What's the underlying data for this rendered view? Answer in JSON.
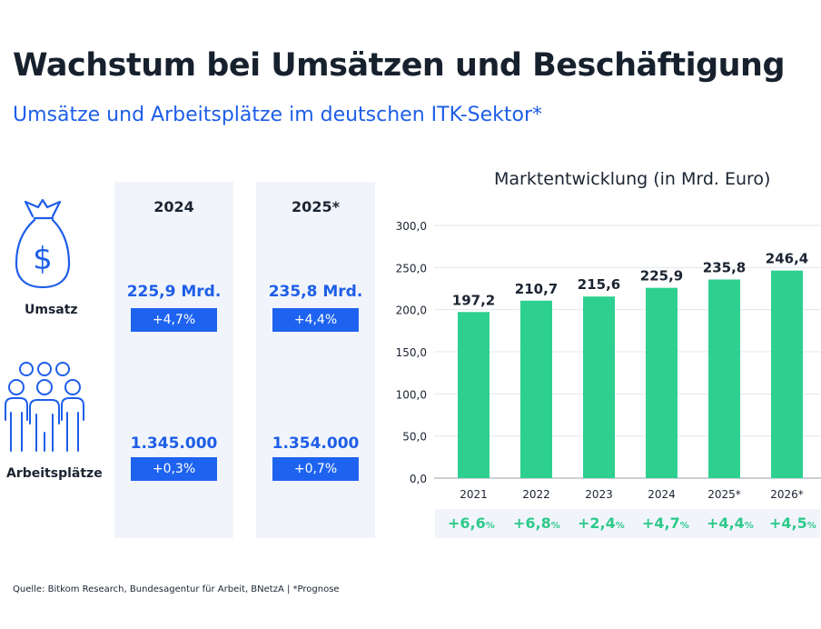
{
  "title": "Wachstum bei Umsätzen und Beschäftigung",
  "subtitle": "Umsätze und Arbeitsplätze im deutschen ITK-Sektor*",
  "table": {
    "columns": [
      "2024",
      "2025*"
    ],
    "rows": [
      {
        "label": "Umsatz",
        "icon": "money-bag-icon",
        "values": [
          "225,9 Mrd.",
          "235,8 Mrd."
        ],
        "changes": [
          "+4,7%",
          "+4,4%"
        ]
      },
      {
        "label": "Arbeitsplätze",
        "icon": "people-group-icon",
        "values": [
          "1.345.000",
          "1.354.000"
        ],
        "changes": [
          "+0,3%",
          "+0,7%"
        ]
      }
    ]
  },
  "colors": {
    "accent_blue": "#1e5ee8",
    "badge_blue": "#1e63f0",
    "bar_green": "#2ed08f",
    "growth_green": "#2fc98b",
    "panel_bg": "#f1f5fb"
  },
  "chart_data": {
    "type": "bar",
    "title": "Marktentwicklung (in Mrd. Euro)",
    "categories": [
      "2021",
      "2022",
      "2023",
      "2024",
      "2025*",
      "2026*"
    ],
    "values": [
      197.2,
      210.7,
      215.6,
      225.9,
      235.8,
      246.4
    ],
    "value_labels": [
      "197,2",
      "210,7",
      "215,6",
      "225,9",
      "235,8",
      "246,4"
    ],
    "y_ticks": [
      "0,0",
      "50,0",
      "100,0",
      "150,0",
      "200,0",
      "250,0",
      "300,0"
    ],
    "y_tick_values": [
      0,
      50,
      100,
      150,
      200,
      250,
      300
    ],
    "ylim": [
      0,
      300
    ],
    "grid": true,
    "growth": [
      {
        "num": "+6,6",
        "pct": "%"
      },
      {
        "num": "+6,8",
        "pct": "%"
      },
      {
        "num": "+2,4",
        "pct": "%"
      },
      {
        "num": "+4,7",
        "pct": "%"
      },
      {
        "num": "+4,4",
        "pct": "%"
      },
      {
        "num": "+4,5",
        "pct": "%"
      }
    ]
  },
  "source": "Quelle: Bitkom Research, Bundesagentur für Arbeit, BNetzA | *Prognose"
}
